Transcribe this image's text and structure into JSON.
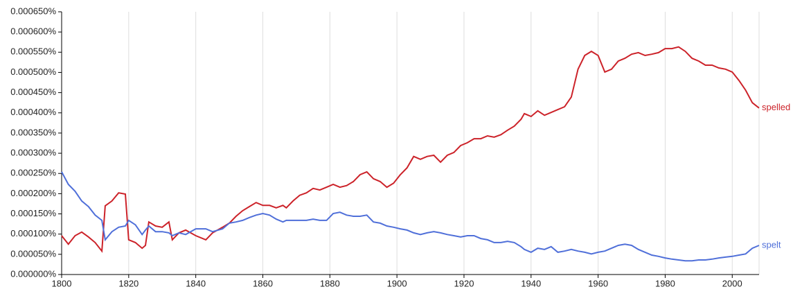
{
  "chart_data": {
    "type": "line",
    "x": [
      1800,
      1802,
      1804,
      1806,
      1808,
      1810,
      1812,
      1813,
      1815,
      1817,
      1819,
      1820,
      1822,
      1824,
      1825,
      1826,
      1828,
      1830,
      1832,
      1833,
      1835,
      1837,
      1840,
      1843,
      1845,
      1848,
      1850,
      1852,
      1854,
      1856,
      1858,
      1860,
      1862,
      1864,
      1866,
      1867,
      1869,
      1871,
      1873,
      1875,
      1877,
      1879,
      1881,
      1883,
      1885,
      1887,
      1889,
      1891,
      1893,
      1895,
      1897,
      1899,
      1901,
      1903,
      1905,
      1907,
      1909,
      1911,
      1913,
      1915,
      1917,
      1919,
      1921,
      1923,
      1925,
      1927,
      1929,
      1931,
      1933,
      1935,
      1937,
      1938,
      1940,
      1942,
      1944,
      1946,
      1948,
      1950,
      1952,
      1954,
      1956,
      1958,
      1960,
      1962,
      1964,
      1966,
      1968,
      1970,
      1972,
      1974,
      1976,
      1978,
      1980,
      1982,
      1984,
      1986,
      1988,
      1990,
      1992,
      1994,
      1996,
      1998,
      2000,
      2002,
      2004,
      2006,
      2008
    ],
    "series": [
      {
        "name": "spelled",
        "color": "#cc2229",
        "values": [
          9.6e-05,
          7.5e-05,
          9.6e-05,
          0.000105,
          9.3e-05,
          7.9e-05,
          5.8e-05,
          0.00017,
          0.000182,
          0.000202,
          0.000199,
          8.6e-05,
          7.9e-05,
          6.5e-05,
          7.2e-05,
          0.00013,
          0.00012,
          0.000117,
          0.00013,
          8.6e-05,
          0.000103,
          0.00011,
          9.6e-05,
          8.6e-05,
          0.000103,
          0.000117,
          0.000127,
          0.000144,
          0.000158,
          0.000168,
          0.000178,
          0.000171,
          0.000171,
          0.000165,
          0.000171,
          0.000165,
          0.000182,
          0.000196,
          0.000202,
          0.000213,
          0.000209,
          0.000216,
          0.000223,
          0.000216,
          0.00022,
          0.00023,
          0.000247,
          0.000254,
          0.000237,
          0.00023,
          0.000216,
          0.000226,
          0.000247,
          0.000264,
          0.000292,
          0.000285,
          0.000292,
          0.000295,
          0.000278,
          0.000295,
          0.000302,
          0.000319,
          0.000326,
          0.000336,
          0.000336,
          0.000343,
          0.00034,
          0.000346,
          0.000357,
          0.000367,
          0.000384,
          0.000398,
          0.000391,
          0.000405,
          0.000394,
          0.000401,
          0.000408,
          0.000415,
          0.000439,
          0.000508,
          0.000542,
          0.000552,
          0.000542,
          0.000501,
          0.000508,
          0.000528,
          0.000535,
          0.000545,
          0.000549,
          0.000542,
          0.000545,
          0.000549,
          0.000559,
          0.000559,
          0.000563,
          0.000552,
          0.000535,
          0.000528,
          0.000518,
          0.000518,
          0.000511,
          0.000508,
          0.000501,
          0.00048,
          0.000456,
          0.000425,
          0.000412
        ]
      },
      {
        "name": "spelt",
        "color": "#4f6fd9",
        "values": [
          0.000254,
          0.000223,
          0.000206,
          0.000182,
          0.000168,
          0.000147,
          0.000134,
          8.6e-05,
          0.000106,
          0.000117,
          0.00012,
          0.000134,
          0.000123,
          9.9e-05,
          0.00011,
          0.00012,
          0.000106,
          0.000106,
          0.000103,
          9.6e-05,
          0.000103,
          9.9e-05,
          0.000113,
          0.000113,
          0.000106,
          0.000113,
          0.000127,
          0.00013,
          0.000134,
          0.000141,
          0.000147,
          0.000151,
          0.000147,
          0.000137,
          0.00013,
          0.000134,
          0.000134,
          0.000134,
          0.000134,
          0.000137,
          0.000134,
          0.000134,
          0.000151,
          0.000154,
          0.000147,
          0.000144,
          0.000144,
          0.000147,
          0.00013,
          0.000127,
          0.00012,
          0.000117,
          0.000113,
          0.00011,
          0.000103,
          9.9e-05,
          0.000103,
          0.000106,
          0.000103,
          9.9e-05,
          9.6e-05,
          9.3e-05,
          9.6e-05,
          9.6e-05,
          8.9e-05,
          8.6e-05,
          7.9e-05,
          7.9e-05,
          8.2e-05,
          7.9e-05,
          6.9e-05,
          6.2e-05,
          5.5e-05,
          6.5e-05,
          6.2e-05,
          6.9e-05,
          5.5e-05,
          5.8e-05,
          6.2e-05,
          5.8e-05,
          5.5e-05,
          5.1e-05,
          5.5e-05,
          5.8e-05,
          6.5e-05,
          7.2e-05,
          7.5e-05,
          7.2e-05,
          6.2e-05,
          5.5e-05,
          4.8e-05,
          4.5e-05,
          4.1e-05,
          3.8e-05,
          3.6e-05,
          3.4e-05,
          3.4e-05,
          3.6e-05,
          3.6e-05,
          3.8e-05,
          4.1e-05,
          4.3e-05,
          4.5e-05,
          4.8e-05,
          5.1e-05,
          6.5e-05,
          7.2e-05
        ]
      }
    ],
    "xlim": [
      1800,
      2008
    ],
    "xticks": [
      1800,
      1820,
      1840,
      1860,
      1880,
      1900,
      1920,
      1940,
      1960,
      1980,
      2000
    ],
    "ylim": [
      0,
      0.00065
    ],
    "yticks": [
      {
        "value": 0,
        "label": "0.000000%"
      },
      {
        "value": 5e-05,
        "label": "0.000050%"
      },
      {
        "value": 0.0001,
        "label": "0.000100%"
      },
      {
        "value": 0.00015,
        "label": "0.000150%"
      },
      {
        "value": 0.0002,
        "label": "0.000200%"
      },
      {
        "value": 0.00025,
        "label": "0.000250%"
      },
      {
        "value": 0.0003,
        "label": "0.000300%"
      },
      {
        "value": 0.00035,
        "label": "0.000350%"
      },
      {
        "value": 0.0004,
        "label": "0.000400%"
      },
      {
        "value": 0.00045,
        "label": "0.000450%"
      },
      {
        "value": 0.0005,
        "label": "0.000500%"
      },
      {
        "value": 0.00055,
        "label": "0.000550%"
      },
      {
        "value": 0.0006,
        "label": "0.000600%"
      },
      {
        "value": 0.00065,
        "label": "0.000650%"
      }
    ],
    "grid": true
  }
}
